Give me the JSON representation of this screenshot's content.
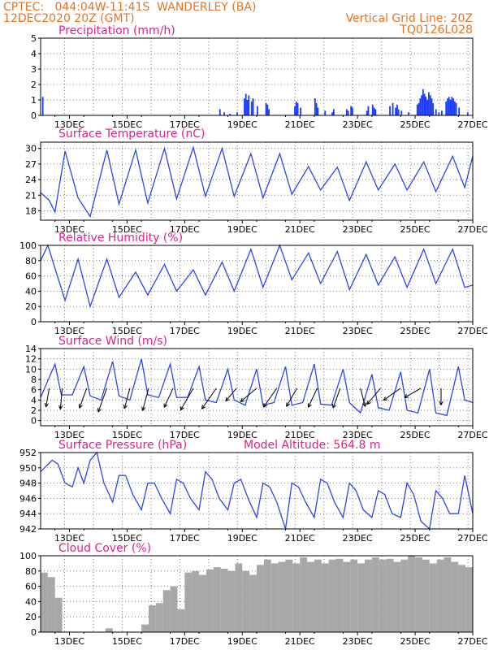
{
  "header": {
    "left_line1": "CPTEC:   044:04W-11:41S  WANDERLEY (BA)",
    "left_line2": "12DEC2020 20Z (GMT)",
    "right_line1": "Vertical Grid Line: 20Z",
    "right_line2": "TQ0126L028"
  },
  "model_altitude": "Model Altitude: 564.8 m",
  "colors": {
    "header": "#e8731c",
    "title": "#e0208c",
    "line": "#2d45e8",
    "precip_bar": "#1e3cff",
    "cloud_bar": "#a8a8a8"
  },
  "x_axis": {
    "range": [
      12.0,
      27.0
    ],
    "ticks": [
      13,
      15,
      17,
      19,
      21,
      23,
      25,
      27
    ],
    "tick_labels": [
      "13DEC",
      "15DEC",
      "17DEC",
      "19DEC",
      "21DEC",
      "23DEC",
      "25DEC",
      "27DEC"
    ],
    "vertical_grid_hour_z": 20
  },
  "chart_data": [
    {
      "id": "precip",
      "type": "bar",
      "title": "Precipitation (mm/h)",
      "ylim": [
        0,
        5
      ],
      "yticks": [
        0,
        1,
        2,
        3,
        4,
        5
      ],
      "x": [
        12.05,
        18.2,
        18.35,
        18.55,
        18.8,
        19.05,
        19.1,
        19.15,
        19.2,
        19.3,
        19.35,
        19.5,
        19.8,
        19.85,
        19.9,
        20.8,
        20.85,
        20.9,
        21.0,
        21.5,
        21.55,
        21.6,
        21.85,
        22.1,
        22.15,
        22.6,
        22.65,
        22.75,
        22.8,
        23.3,
        23.35,
        23.5,
        23.55,
        23.6,
        24.1,
        24.2,
        24.3,
        24.35,
        24.4,
        24.5,
        24.75,
        25.05,
        25.1,
        25.15,
        25.2,
        25.25,
        25.3,
        25.35,
        25.4,
        25.45,
        25.5,
        25.55,
        25.6,
        25.7,
        25.8,
        25.9,
        26.05,
        26.1,
        26.15,
        26.2,
        26.25,
        26.3,
        26.35,
        26.4,
        26.5,
        26.8
      ],
      "values": [
        1.2,
        0.4,
        0.2,
        0.1,
        0.2,
        1.1,
        1.4,
        1.0,
        1.3,
        0.9,
        1.1,
        0.6,
        0.8,
        0.7,
        0.4,
        0.6,
        0.9,
        0.8,
        0.5,
        1.1,
        0.8,
        0.5,
        0.3,
        0.2,
        0.4,
        0.4,
        0.3,
        0.6,
        0.5,
        0.3,
        0.6,
        0.7,
        0.5,
        0.4,
        0.6,
        0.8,
        0.5,
        0.7,
        0.4,
        0.3,
        0.2,
        0.7,
        0.8,
        1.1,
        1.3,
        1.7,
        1.4,
        1.2,
        1.0,
        1.5,
        1.3,
        1.1,
        0.8,
        0.4,
        0.2,
        0.3,
        0.9,
        1.1,
        1.2,
        1.0,
        1.2,
        1.1,
        0.9,
        0.8,
        0.5,
        0.2
      ]
    },
    {
      "id": "temperature",
      "type": "line",
      "title": "Surface Temperature (nC)",
      "ylim": [
        16.2,
        31.2
      ],
      "yticks": [
        18,
        21,
        24,
        27,
        30
      ],
      "x": [
        12.0,
        12.3,
        12.5,
        12.85,
        13.3,
        13.72,
        14.3,
        14.72,
        15.3,
        15.72,
        16.3,
        16.72,
        17.3,
        17.72,
        18.3,
        18.72,
        19.3,
        19.72,
        20.3,
        20.72,
        21.3,
        21.72,
        22.3,
        22.72,
        23.3,
        23.72,
        24.3,
        24.72,
        25.3,
        25.72,
        26.3,
        26.72,
        27.0
      ],
      "values": [
        21.5,
        20.0,
        17.8,
        29.5,
        20.5,
        16.9,
        29.7,
        19.3,
        29.7,
        19.5,
        30.0,
        20.3,
        30.2,
        20.8,
        30.0,
        20.8,
        29.0,
        20.5,
        29.0,
        21.2,
        26.5,
        22.0,
        26.4,
        20.0,
        27.4,
        22.0,
        27.0,
        22.0,
        27.4,
        21.7,
        28.5,
        22.5,
        28.5
      ]
    },
    {
      "id": "humidity",
      "type": "line",
      "title": "Relative Humidity (%)",
      "ylim": [
        0,
        100
      ],
      "yticks": [
        0,
        20,
        40,
        60,
        80,
        100
      ],
      "x": [
        12.0,
        12.25,
        12.85,
        13.3,
        13.72,
        14.3,
        14.72,
        15.3,
        15.72,
        16.3,
        16.72,
        17.3,
        17.72,
        18.3,
        18.72,
        19.3,
        19.72,
        20.3,
        20.72,
        21.3,
        21.72,
        22.3,
        22.72,
        23.3,
        23.72,
        24.3,
        24.72,
        25.3,
        25.72,
        26.3,
        26.72,
        27.0
      ],
      "values": [
        80,
        100,
        28,
        82,
        20,
        82,
        32,
        65,
        35,
        75,
        40,
        68,
        35,
        78,
        40,
        95,
        45,
        100,
        55,
        90,
        50,
        92,
        42,
        88,
        48,
        85,
        45,
        95,
        50,
        95,
        45,
        48
      ]
    },
    {
      "id": "wind",
      "type": "line",
      "title": "Surface Wind (m/s)",
      "ylim": [
        -1,
        14
      ],
      "yticks": [
        0,
        2,
        4,
        6,
        8,
        10,
        12,
        14
      ],
      "x": [
        12.0,
        12.5,
        12.72,
        13.1,
        13.5,
        13.72,
        14.1,
        14.5,
        14.72,
        15.1,
        15.5,
        15.72,
        16.1,
        16.5,
        16.72,
        17.1,
        17.5,
        17.72,
        18.1,
        18.5,
        18.72,
        19.1,
        19.5,
        19.72,
        20.1,
        20.5,
        20.72,
        21.1,
        21.5,
        21.72,
        22.1,
        22.5,
        22.72,
        23.1,
        23.5,
        23.72,
        24.1,
        24.5,
        24.72,
        25.1,
        25.5,
        25.72,
        26.1,
        26.5,
        26.72,
        27.0
      ],
      "values": [
        4.5,
        11.0,
        5.0,
        5.0,
        10.5,
        4.8,
        4.0,
        11.5,
        4.8,
        4.0,
        12.0,
        5.0,
        4.5,
        11.0,
        4.5,
        4.5,
        10.5,
        4.0,
        3.5,
        10.0,
        4.0,
        3.0,
        10.0,
        3.0,
        3.5,
        10.5,
        3.0,
        3.5,
        11.0,
        3.2,
        3.0,
        10.0,
        3.5,
        1.5,
        9.0,
        2.5,
        2.0,
        9.5,
        2.0,
        1.5,
        10.0,
        1.5,
        1.0,
        10.5,
        4.0,
        3.5
      ],
      "barbs": [
        {
          "x": 12.3,
          "speed": 4.5,
          "to_deg": 190
        },
        {
          "x": 12.75,
          "speed": 5.0,
          "to_deg": 185
        },
        {
          "x": 13.6,
          "speed": 5.0,
          "to_deg": 200
        },
        {
          "x": 14.3,
          "speed": 6.0,
          "to_deg": 200
        },
        {
          "x": 15.1,
          "speed": 5.0,
          "to_deg": 195
        },
        {
          "x": 15.75,
          "speed": 5.5,
          "to_deg": 195
        },
        {
          "x": 16.6,
          "speed": 5.0,
          "to_deg": 205
        },
        {
          "x": 17.3,
          "speed": 6.0,
          "to_deg": 210
        },
        {
          "x": 18.1,
          "speed": 6.0,
          "to_deg": 215
        },
        {
          "x": 18.8,
          "speed": 4.0,
          "to_deg": 220
        },
        {
          "x": 19.5,
          "speed": 5.0,
          "to_deg": 230
        },
        {
          "x": 20.2,
          "speed": 5.5,
          "to_deg": 215
        },
        {
          "x": 20.9,
          "speed": 5.0,
          "to_deg": 210
        },
        {
          "x": 21.6,
          "speed": 5.0,
          "to_deg": 205
        },
        {
          "x": 22.4,
          "speed": 5.0,
          "to_deg": 200
        },
        {
          "x": 23.1,
          "speed": 4.5,
          "to_deg": 165
        },
        {
          "x": 23.8,
          "speed": 5.0,
          "to_deg": 220
        },
        {
          "x": 24.5,
          "speed": 5.0,
          "to_deg": 235
        },
        {
          "x": 25.2,
          "speed": 4.5,
          "to_deg": 240
        },
        {
          "x": 25.9,
          "speed": 4.0,
          "to_deg": 180
        }
      ]
    },
    {
      "id": "pressure",
      "type": "line",
      "title": "Surface Pressure (hPa)",
      "ylim": [
        942,
        952
      ],
      "yticks": [
        942,
        944,
        946,
        948,
        950,
        952
      ],
      "x": [
        12.0,
        12.4,
        12.6,
        12.85,
        13.1,
        13.3,
        13.5,
        13.72,
        13.95,
        14.2,
        14.5,
        14.72,
        14.95,
        15.2,
        15.5,
        15.72,
        15.95,
        16.2,
        16.5,
        16.72,
        16.95,
        17.2,
        17.5,
        17.72,
        17.95,
        18.2,
        18.5,
        18.72,
        18.95,
        19.2,
        19.5,
        19.72,
        19.95,
        20.2,
        20.5,
        20.72,
        20.95,
        21.2,
        21.5,
        21.72,
        21.95,
        22.2,
        22.5,
        22.72,
        22.95,
        23.2,
        23.5,
        23.72,
        23.95,
        24.2,
        24.5,
        24.72,
        24.95,
        25.2,
        25.5,
        25.72,
        25.95,
        26.2,
        26.5,
        26.72,
        27.0
      ],
      "values": [
        949.5,
        951.0,
        950.5,
        948.0,
        947.5,
        950.0,
        948.0,
        951.0,
        952.0,
        948.0,
        945.5,
        949.0,
        949.0,
        946.5,
        944.5,
        948.0,
        948.0,
        946.0,
        944.0,
        948.5,
        948.0,
        946.0,
        944.5,
        949.5,
        948.5,
        946.0,
        944.5,
        948.0,
        948.5,
        946.0,
        943.5,
        948.0,
        947.5,
        945.5,
        942.0,
        948.0,
        947.5,
        945.5,
        943.5,
        948.5,
        948.0,
        945.5,
        943.5,
        948.0,
        947.0,
        944.5,
        943.5,
        947.0,
        946.5,
        944.0,
        943.5,
        948.0,
        946.5,
        943.0,
        942.0,
        947.0,
        946.0,
        944.0,
        944.0,
        949.0,
        944.0
      ]
    },
    {
      "id": "cloud",
      "type": "bar",
      "title": "Cloud Cover (%)",
      "ylim": [
        0,
        100
      ],
      "yticks": [
        0,
        20,
        40,
        60,
        80,
        100
      ],
      "x": [
        12.0,
        12.25,
        12.5,
        12.75,
        13.0,
        13.25,
        13.5,
        13.75,
        14.0,
        14.25,
        14.5,
        14.75,
        15.0,
        15.25,
        15.5,
        15.75,
        16.0,
        16.25,
        16.5,
        16.75,
        17.0,
        17.25,
        17.5,
        17.75,
        18.0,
        18.25,
        18.5,
        18.75,
        19.0,
        19.25,
        19.5,
        19.75,
        20.0,
        20.25,
        20.5,
        20.75,
        21.0,
        21.25,
        21.5,
        21.75,
        22.0,
        22.25,
        22.5,
        22.75,
        23.0,
        23.25,
        23.5,
        23.75,
        24.0,
        24.25,
        24.5,
        24.75,
        25.0,
        25.25,
        25.5,
        25.75,
        26.0,
        26.25,
        26.5,
        26.75
      ],
      "values": [
        78,
        72,
        45,
        0,
        0,
        0,
        0,
        0,
        0,
        5,
        0,
        0,
        0,
        0,
        10,
        35,
        38,
        55,
        60,
        30,
        78,
        80,
        75,
        82,
        85,
        83,
        80,
        90,
        80,
        75,
        88,
        95,
        90,
        92,
        95,
        90,
        98,
        92,
        95,
        90,
        95,
        96,
        92,
        95,
        90,
        95,
        98,
        95,
        96,
        92,
        95,
        100,
        98,
        95,
        90,
        95,
        98,
        92,
        88,
        85
      ]
    }
  ]
}
